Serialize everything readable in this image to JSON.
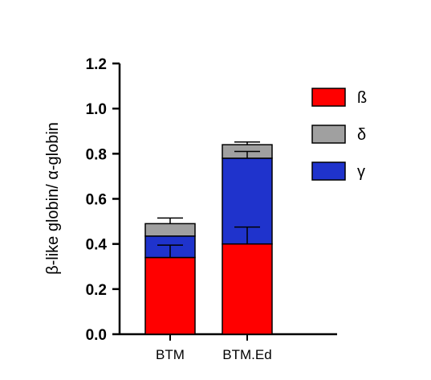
{
  "chart_data": {
    "type": "bar",
    "stacked": true,
    "title": "",
    "xlabel": "",
    "ylabel": "β-like globin/ α-globin",
    "ylim": [
      0,
      1.2
    ],
    "yticks": [
      "0.0",
      "0.2",
      "0.4",
      "0.6",
      "0.8",
      "1.0",
      "1.2"
    ],
    "grid": false,
    "legend_position": "right",
    "categories": [
      "BTM",
      "BTM.Ed"
    ],
    "series": [
      {
        "name": "ß",
        "color": "#ff0000",
        "values": [
          0.34,
          0.4
        ],
        "errors": [
          0.055,
          0.075
        ]
      },
      {
        "name": "γ",
        "color": "#1f33cc",
        "values": [
          0.095,
          0.38
        ],
        "errors": [
          0.0,
          0.03
        ]
      },
      {
        "name": "δ",
        "color": "#a0a0a0",
        "values": [
          0.055,
          0.06
        ],
        "errors": [
          0.025,
          0.012
        ]
      }
    ],
    "legend_order": [
      "ß",
      "δ",
      "γ"
    ]
  }
}
